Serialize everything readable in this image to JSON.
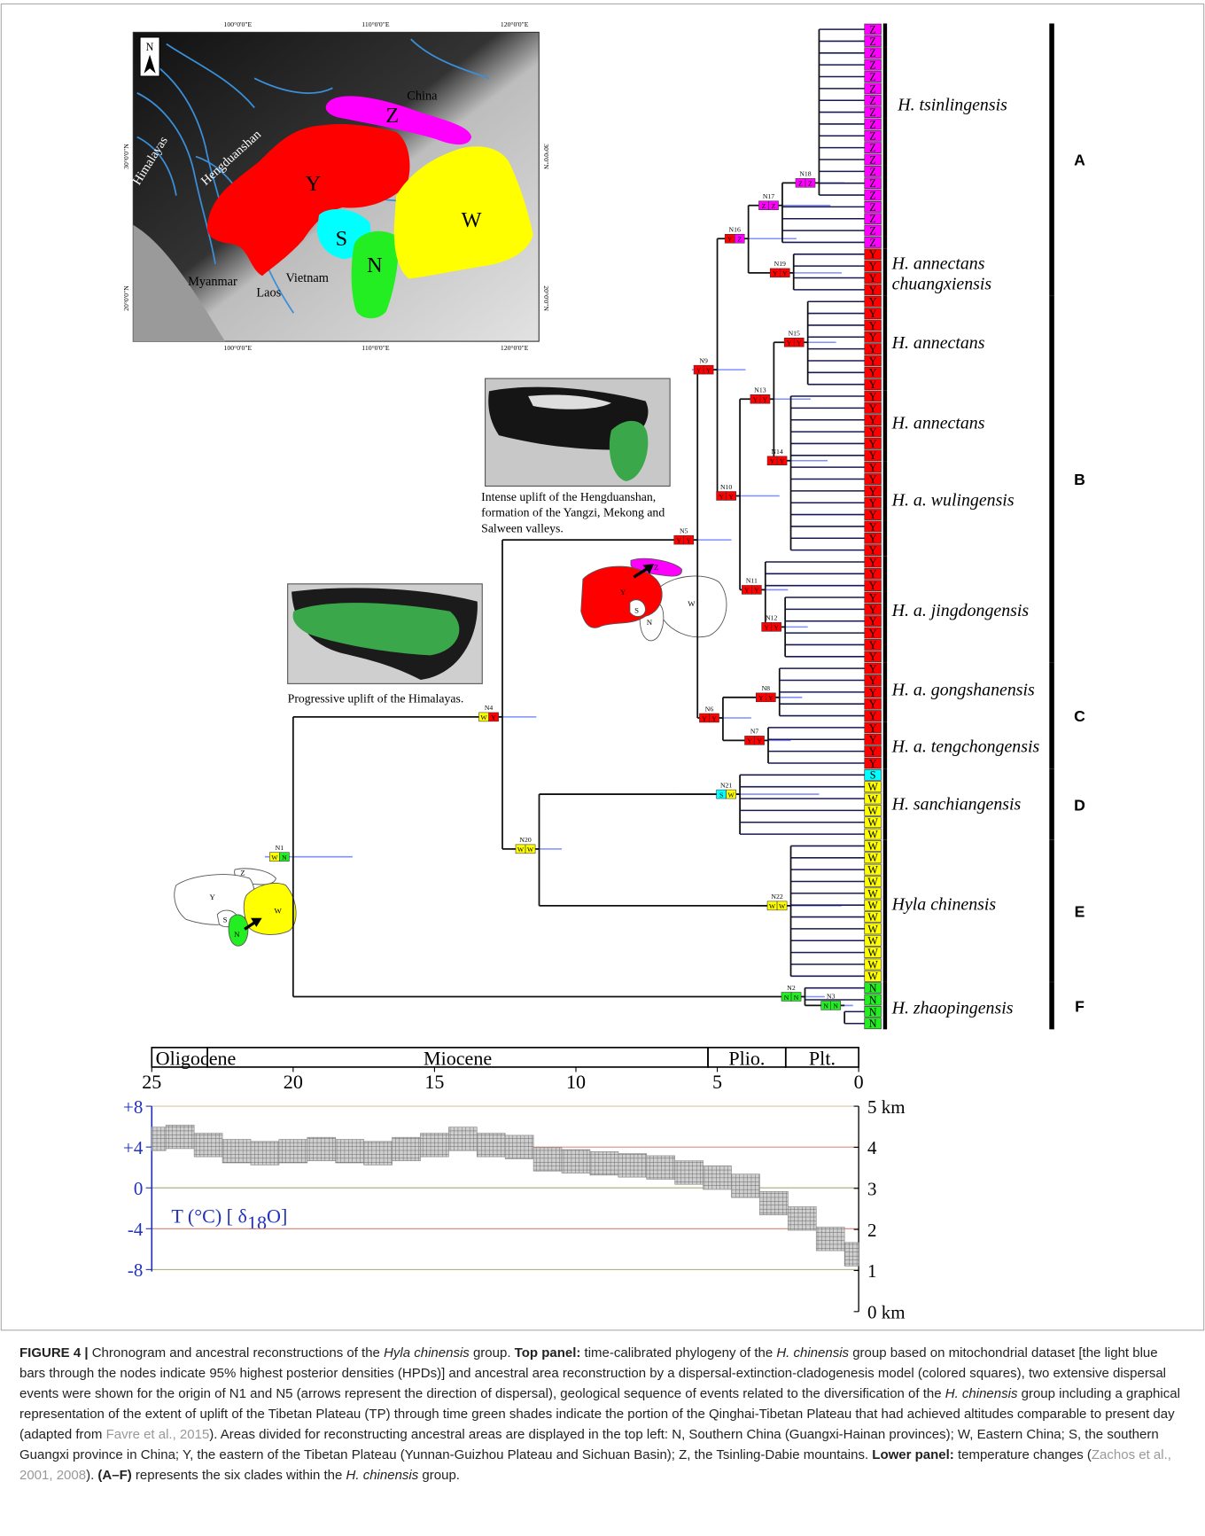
{
  "map": {
    "north": "N",
    "lon_top": [
      "100°0'0\"E",
      "110°0'0\"E",
      "120°0'0\"E"
    ],
    "lon_bottom": [
      "100°0'0\"E",
      "110°0'0\"E",
      "120°0'0\"E"
    ],
    "lat_left": [
      "30°0'0\"N",
      "20°0'0\"N"
    ],
    "lat_right": [
      "30°0'0\"N",
      "20°0'0\"N"
    ],
    "places": [
      "China",
      "Himalayas",
      "Hengduanshan",
      "Myanmar",
      "Laos",
      "Vietnam"
    ],
    "areas": [
      "Z",
      "Y",
      "S",
      "N",
      "W"
    ]
  },
  "area_colors": {
    "Z": "#ff00ff",
    "Y": "#ff0000",
    "S": "#00ffff",
    "N": "#22ee22",
    "W": "#ffff00"
  },
  "insets": [
    {
      "caption": [
        "Intense uplift of the Hengduanshan,",
        "formation of the Yangzi, Mekong and",
        "Salween valleys."
      ]
    },
    {
      "caption": [
        "Progressive uplift of the Himalayas."
      ]
    }
  ],
  "sketches": [
    {
      "labels": [
        "Z",
        "Y",
        "S",
        "N",
        "W"
      ],
      "filled": [
        "Z",
        "Y"
      ]
    },
    {
      "labels": [
        "Z",
        "Y",
        "S",
        "N",
        "W"
      ],
      "filled": [
        "N",
        "W"
      ]
    }
  ],
  "tree": {
    "tips": [
      "Z",
      "Z",
      "Z",
      "Z",
      "Z",
      "Z",
      "Z",
      "Z",
      "Z",
      "Z",
      "Z",
      "Z",
      "Z",
      "Z",
      "Z",
      "Z",
      "Z",
      "Z",
      "Z",
      "Y",
      "Y",
      "Y",
      "Y",
      "Y",
      "Y",
      "Y",
      "Y",
      "Y",
      "Y",
      "Y",
      "Y",
      "Y",
      "Y",
      "Y",
      "Y",
      "Y",
      "Y",
      "Y",
      "Y",
      "Y",
      "Y",
      "Y",
      "Y",
      "Y",
      "Y",
      "Y",
      "Y",
      "Y",
      "Y",
      "Y",
      "Y",
      "Y",
      "Y",
      "Y",
      "Y",
      "Y",
      "Y",
      "Y",
      "Y",
      "Y",
      "Y",
      "Y",
      "Y",
      "S",
      "W",
      "W",
      "W",
      "W",
      "W",
      "W",
      "W",
      "W",
      "W",
      "W",
      "W",
      "W",
      "W",
      "W",
      "W",
      "W",
      "W",
      "N",
      "N",
      "N",
      "N"
    ],
    "nodes": [
      {
        "name": "N1",
        "age": 20.0,
        "hpd": [
          17.9,
          21.0
        ],
        "states": [
          "W",
          "N"
        ]
      },
      {
        "name": "N2",
        "age": 1.9,
        "hpd": [
          1.2,
          2.6
        ],
        "states": [
          "N",
          "N"
        ]
      },
      {
        "name": "N3",
        "age": 0.5,
        "hpd": [
          0.2,
          1.2
        ],
        "states": [
          "N",
          "N"
        ]
      },
      {
        "name": "N4",
        "age": 12.6,
        "hpd": [
          11.4,
          13.3
        ],
        "states": [
          "W",
          "Y"
        ]
      },
      {
        "name": "N5",
        "age": 5.7,
        "hpd": [
          4.5,
          6.3
        ],
        "states": [
          "Y",
          "Y"
        ]
      },
      {
        "name": "N6",
        "age": 4.8,
        "hpd": [
          3.8,
          5.6
        ],
        "states": [
          "Y",
          "Y"
        ]
      },
      {
        "name": "N7",
        "age": 3.2,
        "hpd": [
          2.4,
          3.9
        ],
        "states": [
          "Y",
          "Y"
        ]
      },
      {
        "name": "N8",
        "age": 2.8,
        "hpd": [
          2.0,
          3.6
        ],
        "states": [
          "Y",
          "Y"
        ]
      },
      {
        "name": "N9",
        "age": 5.0,
        "hpd": [
          4.0,
          5.9
        ],
        "states": [
          "Y",
          "Y"
        ]
      },
      {
        "name": "N10",
        "age": 4.2,
        "hpd": [
          2.8,
          4.6
        ],
        "states": [
          "Y",
          "Y"
        ]
      },
      {
        "name": "N11",
        "age": 3.3,
        "hpd": [
          2.5,
          4.2
        ],
        "states": [
          "Y",
          "Y"
        ]
      },
      {
        "name": "N12",
        "age": 2.6,
        "hpd": [
          1.8,
          3.2
        ],
        "states": [
          "Y",
          "Y"
        ]
      },
      {
        "name": "N13",
        "age": 3.0,
        "hpd": [
          1.7,
          3.6
        ],
        "states": [
          "Y",
          "Y"
        ]
      },
      {
        "name": "N14",
        "age": 2.4,
        "hpd": [
          1.1,
          3.0
        ],
        "states": [
          "Y",
          "Y"
        ]
      },
      {
        "name": "N15",
        "age": 1.8,
        "hpd": [
          0.8,
          2.6
        ],
        "states": [
          "Y",
          "Y"
        ]
      },
      {
        "name": "N16",
        "age": 3.9,
        "hpd": [
          2.2,
          4.4
        ],
        "states": [
          "Y",
          "Z"
        ]
      },
      {
        "name": "N17",
        "age": 2.7,
        "hpd": [
          1.0,
          3.4
        ],
        "states": [
          "Z",
          "Z"
        ]
      },
      {
        "name": "N18",
        "age": 1.4,
        "hpd": [
          0.5,
          2.2
        ],
        "states": [
          "Z",
          "Z"
        ]
      },
      {
        "name": "N19",
        "age": 2.3,
        "hpd": [
          0.6,
          2.8
        ],
        "states": [
          "Y",
          "Y"
        ]
      },
      {
        "name": "N20",
        "age": 11.3,
        "hpd": [
          10.5,
          12.2
        ],
        "states": [
          "W",
          "W"
        ]
      },
      {
        "name": "N21",
        "age": 4.2,
        "hpd": [
          1.4,
          6.5
        ],
        "states": [
          "S",
          "W"
        ]
      },
      {
        "name": "N22",
        "age": 2.4,
        "hpd": [
          0.6,
          3.6
        ],
        "states": [
          "W",
          "W"
        ]
      }
    ],
    "species": [
      [
        "H. tsinlingensis"
      ],
      [
        "H. annectans",
        "chuangxiensis"
      ],
      [
        "H. annectans"
      ],
      [
        "H. annectans"
      ],
      [
        "H. a. wulingensis"
      ],
      [
        "H. a. jingdongensis"
      ],
      [
        "H. a. gongshanensis"
      ],
      [
        "H. a. tengchongensis"
      ],
      [
        "H. sanchiangensis"
      ],
      [
        "Hyla chinensis"
      ],
      [
        "H. zhaopingensis"
      ]
    ],
    "clades": [
      "A",
      "B",
      "C",
      "D",
      "E",
      "F"
    ]
  },
  "timescale": {
    "xlim": [
      25,
      0
    ],
    "xticks": [
      25,
      20,
      15,
      10,
      5,
      0
    ],
    "epochs": [
      {
        "name": "Oligocene",
        "start": 25,
        "end": 23.03
      },
      {
        "name": "Miocene",
        "start": 23.03,
        "end": 5.33
      },
      {
        "name": "Plio.",
        "start": 5.33,
        "end": 2.58
      },
      {
        "name": "Plt.",
        "start": 2.58,
        "end": 0
      }
    ]
  },
  "temperature": {
    "ylabel": [
      "T (°C) [ δ",
      "18",
      "O]"
    ],
    "ylim": [
      -8,
      8
    ],
    "yticks": [
      {
        "value": 8,
        "label": "+8"
      },
      {
        "value": 4,
        "label": "+4"
      },
      0,
      -4,
      -8
    ],
    "grid_colors": [
      "#d8c8a0",
      "#d89080",
      "#a8a870",
      "#d88070",
      "#a8a870"
    ],
    "y2lim": [
      0,
      5
    ],
    "y2ticks": [
      {
        "value": 5,
        "label": "5 km"
      },
      4,
      3,
      2,
      1,
      {
        "value": 0,
        "label": "0 km"
      }
    ],
    "x": [
      25,
      24,
      23,
      22,
      21,
      20,
      19,
      18,
      17,
      16,
      15,
      14,
      13,
      12,
      11,
      10,
      9,
      8,
      7,
      6,
      5,
      4,
      3,
      2,
      1,
      0
    ],
    "values": [
      4.8,
      5.0,
      4.2,
      3.6,
      3.4,
      3.6,
      3.8,
      3.6,
      3.4,
      3.8,
      4.2,
      4.8,
      4.2,
      4.0,
      2.8,
      2.6,
      2.4,
      2.2,
      2.0,
      1.5,
      1.0,
      0.2,
      -1.5,
      -3.0,
      -5.0,
      -6.5
    ],
    "color": "#888888"
  },
  "caption": [
    {
      "text": "FIGURE 4 |",
      "style": "bold"
    },
    {
      "text": " Chronogram and ancestral reconstructions of the ",
      "style": "plain"
    },
    {
      "text": "Hyla chinensis",
      "style": "italic"
    },
    {
      "text": " group. ",
      "style": "plain"
    },
    {
      "text": "Top panel:",
      "style": "bold"
    },
    {
      "text": " time-calibrated phylogeny of the ",
      "style": "plain"
    },
    {
      "text": "H. chinensis",
      "style": "italic"
    },
    {
      "text": " group based on mitochondrial dataset [the light blue bars through the nodes indicate 95% highest posterior densities (HPDs)] and ancestral area reconstruction by a dispersal-extinction-cladogenesis model (colored squares), two extensive dispersal events were shown for the origin of N1 and N5 (arrows represent the direction of dispersal), geological sequence of events related to the diversification of the ",
      "style": "plain"
    },
    {
      "text": "H. chinensis",
      "style": "italic"
    },
    {
      "text": " group including a graphical representation of the extent of uplift of the Tibetan Plateau (TP) through time green shades indicate the portion of the Qinghai-Tibetan Plateau that had achieved altitudes comparable to present day (adapted from ",
      "style": "plain"
    },
    {
      "text": "Favre et al., 2015",
      "style": "link"
    },
    {
      "text": "). Areas divided for reconstructing ancestral areas are displayed in the top left: N, Southern China (Guangxi-Hainan provinces); W, Eastern China; S, the southern Guangxi province in China; Y, the eastern of the Tibetan Plateau (Yunnan-Guizhou Plateau and Sichuan Basin); Z, the Tsinling-Dabie mountains. ",
      "style": "plain"
    },
    {
      "text": "Lower panel:",
      "style": "bold"
    },
    {
      "text": " temperature changes (",
      "style": "plain"
    },
    {
      "text": "Zachos et al., 2001, 2008",
      "style": "link"
    },
    {
      "text": "). ",
      "style": "plain"
    },
    {
      "text": "(A–F)",
      "style": "bold"
    },
    {
      "text": " represents the six clades within the ",
      "style": "plain"
    },
    {
      "text": "H. chinensis",
      "style": "italic"
    },
    {
      "text": " group.",
      "style": "plain"
    }
  ]
}
